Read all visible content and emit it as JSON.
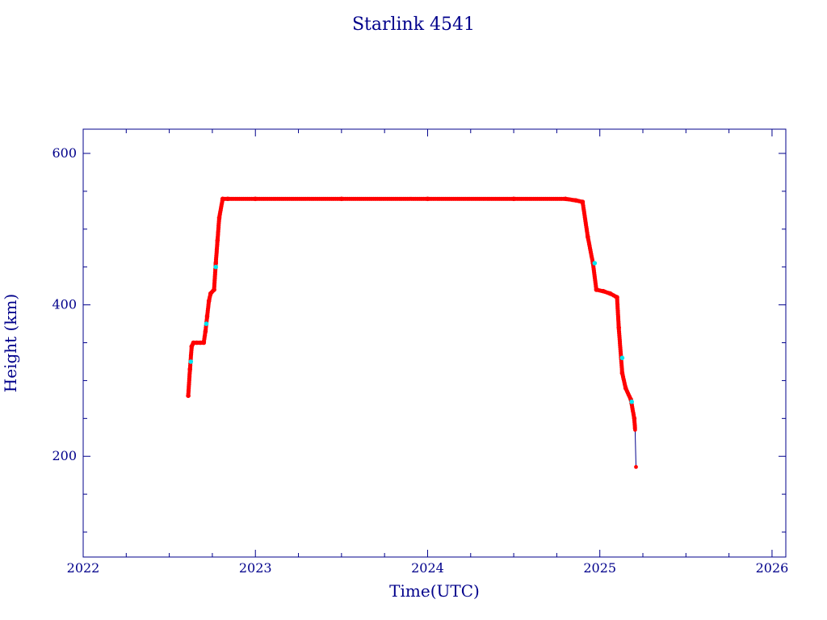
{
  "chart_data": {
    "type": "line",
    "title": "Starlink 4541",
    "xlabel": "Time(UTC)",
    "ylabel": "Height (km)",
    "xlim": [
      2022.0,
      2026.08
    ],
    "ylim": [
      67,
      632
    ],
    "xticks": [
      2022,
      2023,
      2024,
      2025,
      2026
    ],
    "yticks": [
      200,
      400,
      600
    ],
    "grid": false,
    "colors": {
      "axis": "#00008b",
      "points": "#ff0000",
      "highlight": "#00e5ee",
      "line": "#00008b"
    },
    "series": [
      {
        "x": [
          2022.61,
          2022.62,
          2022.63,
          2022.64,
          2022.66,
          2022.68,
          2022.7,
          2022.71,
          2022.72,
          2022.73,
          2022.74,
          2022.76,
          2022.77,
          2022.78,
          2022.79,
          2022.81,
          2022.84,
          2023.0,
          2023.5,
          2024.0,
          2024.5,
          2024.8,
          2024.86,
          2024.9,
          2024.93,
          2024.96,
          2024.98,
          2025.02,
          2025.06,
          2025.1,
          2025.11,
          2025.13,
          2025.15,
          2025.18,
          2025.2,
          2025.205,
          2025.21
        ],
        "y": [
          280,
          315,
          345,
          350,
          350,
          350,
          350,
          365,
          385,
          405,
          415,
          420,
          455,
          485,
          515,
          540,
          540,
          540,
          540,
          540,
          540,
          540,
          538,
          536,
          490,
          455,
          420,
          418,
          415,
          410,
          370,
          310,
          290,
          275,
          250,
          235,
          186
        ]
      }
    ],
    "highlight_points": {
      "x": [
        2022.625,
        2022.715,
        2022.77,
        2024.97,
        2025.13,
        2025.185
      ],
      "y": [
        325,
        375,
        450,
        455,
        330,
        272
      ]
    }
  }
}
